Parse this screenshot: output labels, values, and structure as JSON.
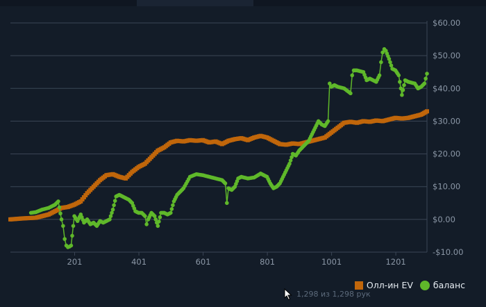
{
  "legend": {
    "series1_label": "Олл-ин EV",
    "series2_label": "баланс"
  },
  "status_text": "1,298 из 1,298 рук",
  "colors": {
    "background": "#131c28",
    "grid": "#3b4656",
    "tick_text": "#8b97a6",
    "allin_ev": "#c0660b",
    "balance": "#5fb82a"
  },
  "chart_data": {
    "type": "line",
    "xlim": [
      1,
      1298
    ],
    "ylim": [
      -10,
      60
    ],
    "y_ticks": [
      -10,
      0,
      10,
      20,
      30,
      40,
      50,
      60
    ],
    "y_tick_labels": [
      "-$10.00",
      "$0.00",
      "$10.00",
      "$20.00",
      "$30.00",
      "$40.00",
      "$50.00",
      "$60.00"
    ],
    "x_ticks": [
      201,
      401,
      601,
      801,
      1001,
      1201
    ],
    "x_tick_labels": [
      "201",
      "401",
      "601",
      "801",
      "1001",
      "1201"
    ],
    "grid": true,
    "legend_position": "bottom-right",
    "series": [
      {
        "name": "Олл-ин EV",
        "marker": "square",
        "x": [
          1,
          40,
          80,
          120,
          160,
          180,
          200,
          220,
          240,
          260,
          280,
          300,
          320,
          340,
          360,
          380,
          400,
          420,
          440,
          460,
          480,
          500,
          520,
          540,
          560,
          580,
          600,
          620,
          640,
          660,
          680,
          700,
          720,
          740,
          760,
          780,
          800,
          820,
          840,
          860,
          880,
          900,
          920,
          940,
          960,
          980,
          1000,
          1020,
          1040,
          1060,
          1080,
          1100,
          1120,
          1140,
          1160,
          1180,
          1200,
          1220,
          1240,
          1260,
          1280,
          1298
        ],
        "y": [
          0,
          0.3,
          0.5,
          1.5,
          3.5,
          3.8,
          4.5,
          5.5,
          8,
          10,
          12,
          13.5,
          13.8,
          13,
          12.5,
          14.5,
          16,
          17,
          19,
          21,
          22,
          23.5,
          24,
          23.8,
          24.2,
          24,
          24.2,
          23.5,
          23.8,
          23,
          24,
          24.5,
          24.8,
          24.2,
          25,
          25.5,
          25,
          24,
          23,
          22.8,
          23.2,
          23,
          23.5,
          24,
          24.5,
          25,
          26.5,
          28,
          29.5,
          29.8,
          29.5,
          30,
          29.8,
          30.2,
          30,
          30.5,
          31,
          30.8,
          31,
          31.5,
          32,
          33
        ]
      },
      {
        "name": "баланс",
        "marker": "circle",
        "x": [
          65,
          80,
          100,
          120,
          140,
          150,
          160,
          165,
          170,
          175,
          180,
          185,
          190,
          200,
          210,
          220,
          230,
          240,
          250,
          260,
          270,
          280,
          290,
          300,
          310,
          320,
          330,
          340,
          350,
          360,
          370,
          380,
          390,
          400,
          410,
          420,
          425,
          430,
          440,
          450,
          460,
          470,
          480,
          490,
          500,
          510,
          520,
          530,
          540,
          560,
          580,
          600,
          620,
          640,
          660,
          670,
          675,
          680,
          690,
          700,
          710,
          720,
          740,
          760,
          780,
          790,
          800,
          810,
          820,
          830,
          840,
          850,
          860,
          870,
          880,
          890,
          900,
          910,
          920,
          930,
          940,
          950,
          960,
          970,
          980,
          990,
          995,
          1000,
          1010,
          1020,
          1040,
          1060,
          1065,
          1070,
          1080,
          1100,
          1110,
          1120,
          1130,
          1140,
          1150,
          1155,
          1160,
          1165,
          1170,
          1180,
          1190,
          1200,
          1210,
          1220,
          1230,
          1240,
          1260,
          1270,
          1280,
          1290,
          1298
        ],
        "y": [
          2,
          2.2,
          3,
          3.5,
          4.5,
          5.5,
          0,
          -2,
          -6,
          -8,
          -8.5,
          -8.3,
          -8,
          1,
          -0.5,
          1.5,
          -1,
          0,
          -1.5,
          -1,
          -2,
          -0.5,
          -1,
          -0.5,
          0,
          3,
          7,
          7.5,
          7,
          6.5,
          6,
          5,
          2.5,
          2,
          2,
          1,
          -1.5,
          0,
          2,
          1,
          -2,
          2,
          2,
          1.5,
          2,
          5.5,
          7.5,
          8.5,
          9.5,
          13,
          13.8,
          13.5,
          13,
          12.5,
          12,
          11,
          5,
          9.5,
          9,
          10,
          12.5,
          13,
          12.5,
          12.8,
          14,
          13.5,
          13,
          11,
          9.5,
          10,
          11,
          13,
          15,
          17,
          20,
          19.5,
          21,
          22,
          23,
          24,
          26,
          28,
          30,
          29,
          28.5,
          30,
          41.5,
          40.5,
          41,
          40.5,
          40,
          38.5,
          44,
          45.5,
          45.5,
          45,
          42.5,
          43,
          42.5,
          42,
          44,
          48,
          51,
          52,
          51.5,
          49,
          46,
          45.5,
          44,
          38,
          42.5,
          42,
          41.5,
          40,
          40.5,
          41.5,
          44.5
        ]
      }
    ]
  }
}
